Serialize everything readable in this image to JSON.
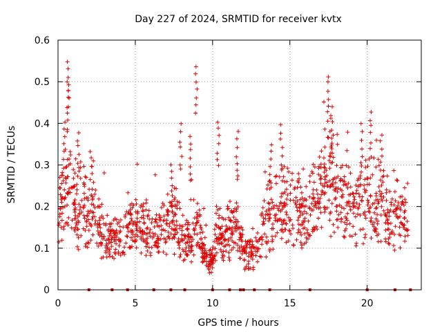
{
  "chart_data": {
    "type": "scatter",
    "title": "Day 227 of 2024, SRMTID for receiver kvtx",
    "xlabel": "GPS time / hours",
    "ylabel": "SRMTID / TECUs",
    "xlim": [
      0,
      23.5
    ],
    "ylim": [
      0,
      0.6
    ],
    "xticks": [
      0,
      5,
      10,
      15,
      20
    ],
    "yticks": [
      0,
      0.1,
      0.2,
      0.3,
      0.4,
      0.5,
      0.6
    ],
    "xtick_labels": [
      "0",
      "5",
      "10",
      "15",
      "20"
    ],
    "ytick_labels": [
      "0",
      "0.1",
      "0.2",
      "0.3",
      "0.4",
      "0.5",
      "0.6"
    ],
    "grid": true,
    "marker": "+",
    "color": "#e00000",
    "trend": [
      [
        0.0,
        0.18
      ],
      [
        0.3,
        0.2
      ],
      [
        0.6,
        0.26
      ],
      [
        0.9,
        0.22
      ],
      [
        1.2,
        0.18
      ],
      [
        1.6,
        0.21
      ],
      [
        2.0,
        0.16
      ],
      [
        2.3,
        0.2
      ],
      [
        2.7,
        0.14
      ],
      [
        3.2,
        0.12
      ],
      [
        3.6,
        0.13
      ],
      [
        4.0,
        0.12
      ],
      [
        4.5,
        0.14
      ],
      [
        5.0,
        0.15
      ],
      [
        5.5,
        0.16
      ],
      [
        6.0,
        0.14
      ],
      [
        6.5,
        0.13
      ],
      [
        7.0,
        0.15
      ],
      [
        7.5,
        0.17
      ],
      [
        8.0,
        0.13
      ],
      [
        8.5,
        0.11
      ],
      [
        8.9,
        0.18
      ],
      [
        9.2,
        0.12
      ],
      [
        9.6,
        0.08
      ],
      [
        10.0,
        0.07
      ],
      [
        10.3,
        0.15
      ],
      [
        10.7,
        0.12
      ],
      [
        11.2,
        0.14
      ],
      [
        11.6,
        0.15
      ],
      [
        12.0,
        0.1
      ],
      [
        12.5,
        0.08
      ],
      [
        13.0,
        0.11
      ],
      [
        13.5,
        0.17
      ],
      [
        14.0,
        0.2
      ],
      [
        14.5,
        0.19
      ],
      [
        15.0,
        0.2
      ],
      [
        15.5,
        0.19
      ],
      [
        16.0,
        0.17
      ],
      [
        16.5,
        0.2
      ],
      [
        17.0,
        0.24
      ],
      [
        17.5,
        0.29
      ],
      [
        17.9,
        0.25
      ],
      [
        18.3,
        0.22
      ],
      [
        18.8,
        0.2
      ],
      [
        19.2,
        0.2
      ],
      [
        19.7,
        0.21
      ],
      [
        20.2,
        0.24
      ],
      [
        20.6,
        0.2
      ],
      [
        21.0,
        0.2
      ],
      [
        21.5,
        0.19
      ],
      [
        22.0,
        0.18
      ],
      [
        22.6,
        0.17
      ]
    ],
    "spikes": [
      [
        0.4,
        0.41
      ],
      [
        0.62,
        0.555
      ],
      [
        0.65,
        0.5
      ],
      [
        1.3,
        0.385
      ],
      [
        2.15,
        0.34
      ],
      [
        7.35,
        0.31
      ],
      [
        7.95,
        0.4
      ],
      [
        8.6,
        0.375
      ],
      [
        8.95,
        0.54
      ],
      [
        10.35,
        0.41
      ],
      [
        11.6,
        0.382
      ],
      [
        13.75,
        0.355
      ],
      [
        14.45,
        0.4
      ],
      [
        17.5,
        0.52
      ],
      [
        17.7,
        0.44
      ],
      [
        19.65,
        0.4
      ],
      [
        20.25,
        0.432
      ],
      [
        20.9,
        0.38
      ]
    ],
    "baseline_flags": [
      2.0,
      3.5,
      4.5,
      6.2,
      7.3,
      8.2,
      10.0,
      11.1,
      11.8,
      12.0,
      12.7,
      13.7,
      16.3,
      20.0,
      21.8,
      22.8
    ]
  }
}
